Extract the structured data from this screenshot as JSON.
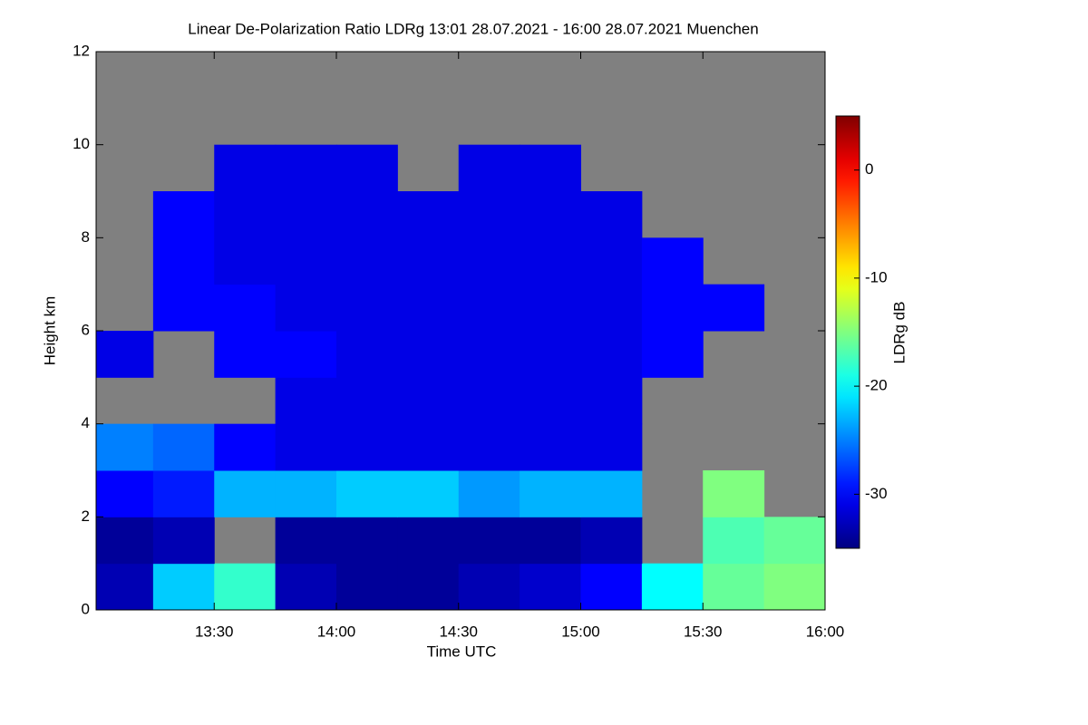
{
  "chart_data": {
    "type": "heatmap",
    "title": "Linear De-Polarization Ratio LDRg   13:01 28.07.2021 - 16:00 28.07.2021 Muenchen",
    "x_label": "Time UTC",
    "y_label": "Height km",
    "colorbar_label": "LDRg dB",
    "colormap": "jet",
    "nodata_color": "#808080",
    "xlim": [
      13.0167,
      16.0
    ],
    "xticks": [
      {
        "value": 13.5,
        "label": "13:30"
      },
      {
        "value": 14.0,
        "label": "14:00"
      },
      {
        "value": 14.5,
        "label": "14:30"
      },
      {
        "value": 15.0,
        "label": "15:00"
      },
      {
        "value": 15.5,
        "label": "15:30"
      },
      {
        "value": 16.0,
        "label": "16:00"
      }
    ],
    "ylim": [
      0,
      12
    ],
    "yticks": [
      0,
      2,
      4,
      6,
      8,
      10,
      12
    ],
    "zlim": [
      -35,
      5
    ],
    "zticks": [
      0,
      -10,
      -20,
      -30
    ],
    "x_bins": [
      13.0167,
      13.25,
      13.5,
      13.75,
      14.0,
      14.25,
      14.5,
      14.75,
      15.0,
      15.25,
      15.5,
      15.75,
      16.0
    ],
    "y_bins": [
      0,
      1,
      2,
      3,
      4,
      5,
      6,
      7,
      8,
      9,
      10,
      11,
      12
    ],
    "z": [
      [
        -33,
        -22,
        -18,
        -33,
        -34,
        -34,
        -33,
        -32,
        -30,
        -20,
        -16,
        -15
      ],
      [
        -34,
        -33,
        null,
        -34,
        -34,
        -34,
        -34,
        -34,
        -33,
        null,
        -17,
        -16
      ],
      [
        -30,
        -29,
        -23,
        -23,
        -22,
        -22,
        -24,
        -23,
        -23,
        null,
        -15,
        null
      ],
      [
        -25,
        -26,
        -30,
        -31,
        -31,
        -31,
        -31,
        -31,
        -31,
        null,
        null,
        null
      ],
      [
        null,
        null,
        null,
        -31,
        -31,
        -31,
        -31,
        -31,
        -31,
        null,
        null,
        null
      ],
      [
        -31,
        null,
        -30,
        -30,
        -31,
        -31,
        -31,
        -31,
        -31,
        -30,
        null,
        null
      ],
      [
        null,
        -30,
        -30,
        -31,
        -31,
        -31,
        -31,
        -31,
        -31,
        -30,
        -30,
        null
      ],
      [
        null,
        -30,
        -31,
        -31,
        -31,
        -31,
        -31,
        -31,
        -31,
        -30,
        null,
        null
      ],
      [
        null,
        -30,
        -31,
        -31,
        -31,
        -31,
        -31,
        -31,
        -31,
        null,
        null,
        null
      ],
      [
        null,
        null,
        -31,
        -31,
        -31,
        null,
        -31,
        -31,
        null,
        null,
        null,
        null
      ],
      [
        null,
        null,
        null,
        null,
        null,
        null,
        null,
        null,
        null,
        null,
        null,
        null
      ],
      [
        null,
        null,
        null,
        null,
        null,
        null,
        null,
        null,
        null,
        null,
        null,
        null
      ]
    ]
  }
}
